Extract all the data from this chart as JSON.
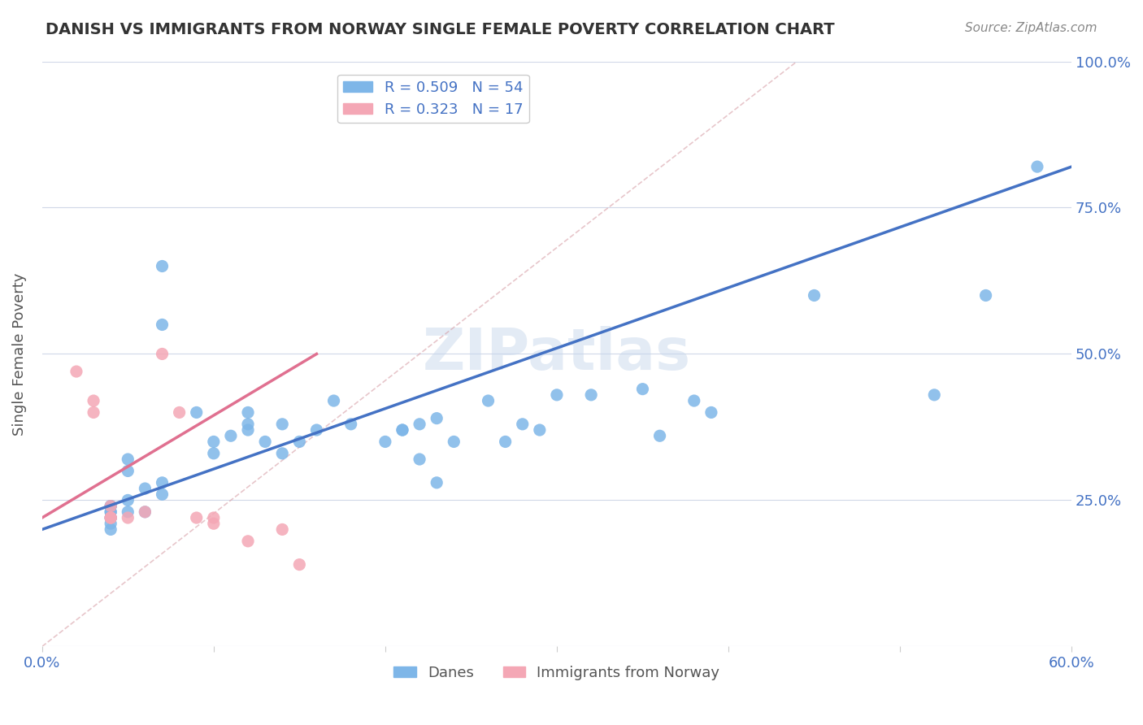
{
  "title": "DANISH VS IMMIGRANTS FROM NORWAY SINGLE FEMALE POVERTY CORRELATION CHART",
  "source": "Source: ZipAtlas.com",
  "xlabel_bottom": "",
  "ylabel": "Single Female Poverty",
  "xlim": [
    0.0,
    0.6
  ],
  "ylim": [
    0.0,
    1.0
  ],
  "xticks": [
    0.0,
    0.1,
    0.2,
    0.3,
    0.4,
    0.5,
    0.6
  ],
  "xticklabels": [
    "0.0%",
    "",
    "",
    "",
    "",
    "",
    "60.0%"
  ],
  "yticks_right": [
    0.0,
    0.25,
    0.5,
    0.75,
    1.0
  ],
  "ytick_labels_right": [
    "",
    "25.0%",
    "50.0%",
    "75.0%",
    "100.0%"
  ],
  "R_danes": 0.509,
  "N_danes": 54,
  "R_norway": 0.323,
  "N_norway": 17,
  "legend_labels": [
    "Danes",
    "Immigrants from Norway"
  ],
  "blue_color": "#7EB6E8",
  "pink_color": "#F4A7B5",
  "blue_line_color": "#4472C4",
  "pink_line_color": "#E07090",
  "watermark": "ZIPatlas",
  "danes_x": [
    0.05,
    0.05,
    0.06,
    0.07,
    0.04,
    0.04,
    0.04,
    0.04,
    0.04,
    0.04,
    0.04,
    0.04,
    0.05,
    0.05,
    0.06,
    0.07,
    0.07,
    0.07,
    0.09,
    0.1,
    0.1,
    0.11,
    0.12,
    0.12,
    0.12,
    0.13,
    0.14,
    0.14,
    0.15,
    0.16,
    0.17,
    0.18,
    0.2,
    0.21,
    0.21,
    0.22,
    0.22,
    0.23,
    0.23,
    0.24,
    0.26,
    0.27,
    0.28,
    0.29,
    0.3,
    0.32,
    0.35,
    0.36,
    0.38,
    0.39,
    0.45,
    0.52,
    0.55,
    0.58
  ],
  "danes_y": [
    0.23,
    0.25,
    0.23,
    0.26,
    0.22,
    0.24,
    0.23,
    0.22,
    0.21,
    0.23,
    0.24,
    0.2,
    0.3,
    0.32,
    0.27,
    0.28,
    0.55,
    0.65,
    0.4,
    0.33,
    0.35,
    0.36,
    0.38,
    0.37,
    0.4,
    0.35,
    0.33,
    0.38,
    0.35,
    0.37,
    0.42,
    0.38,
    0.35,
    0.37,
    0.37,
    0.38,
    0.32,
    0.39,
    0.28,
    0.35,
    0.42,
    0.35,
    0.38,
    0.37,
    0.43,
    0.43,
    0.44,
    0.36,
    0.42,
    0.4,
    0.6,
    0.43,
    0.6,
    0.82
  ],
  "norway_x": [
    0.02,
    0.03,
    0.03,
    0.04,
    0.04,
    0.04,
    0.04,
    0.05,
    0.06,
    0.07,
    0.08,
    0.09,
    0.1,
    0.1,
    0.12,
    0.14,
    0.15
  ],
  "norway_y": [
    0.47,
    0.42,
    0.4,
    0.24,
    0.22,
    0.22,
    0.22,
    0.22,
    0.23,
    0.5,
    0.4,
    0.22,
    0.22,
    0.21,
    0.18,
    0.2,
    0.14
  ],
  "danes_trend_x": [
    0.0,
    0.6
  ],
  "danes_trend_y": [
    0.2,
    0.82
  ],
  "norway_trend_x": [
    0.0,
    0.16
  ],
  "norway_trend_y": [
    0.22,
    0.5
  ],
  "dashed_line_x": [
    0.0,
    0.44
  ],
  "dashed_line_y": [
    0.0,
    1.0
  ]
}
